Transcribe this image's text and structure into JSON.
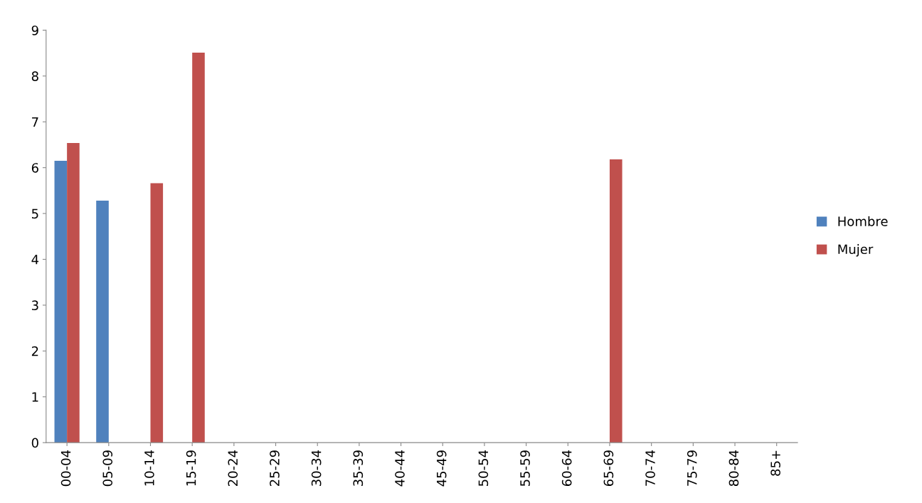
{
  "chart_data": {
    "type": "bar",
    "categories": [
      "00-04",
      "05-09",
      "10-14",
      "15-19",
      "20-24",
      "25-29",
      "30-34",
      "35-39",
      "40-44",
      "45-49",
      "50-54",
      "55-59",
      "60-64",
      "65-69",
      "70-74",
      "75-79",
      "80-84",
      "85+"
    ],
    "series": [
      {
        "name": "Hombre",
        "color": "#4f81bd",
        "values": [
          6.15,
          5.28,
          0,
          0,
          0,
          0,
          0,
          0,
          0,
          0,
          0,
          0,
          0,
          0,
          0,
          0,
          0,
          0
        ]
      },
      {
        "name": "Mujer",
        "color": "#c0504d",
        "values": [
          6.54,
          0,
          5.66,
          8.51,
          0,
          0,
          0,
          0,
          0,
          0,
          0,
          0,
          0,
          6.18,
          0,
          0,
          0,
          0
        ]
      }
    ],
    "ylim": [
      0,
      9
    ],
    "yticks": [
      0,
      1,
      2,
      3,
      4,
      5,
      6,
      7,
      8,
      9
    ],
    "grid": false,
    "legend": "right"
  }
}
